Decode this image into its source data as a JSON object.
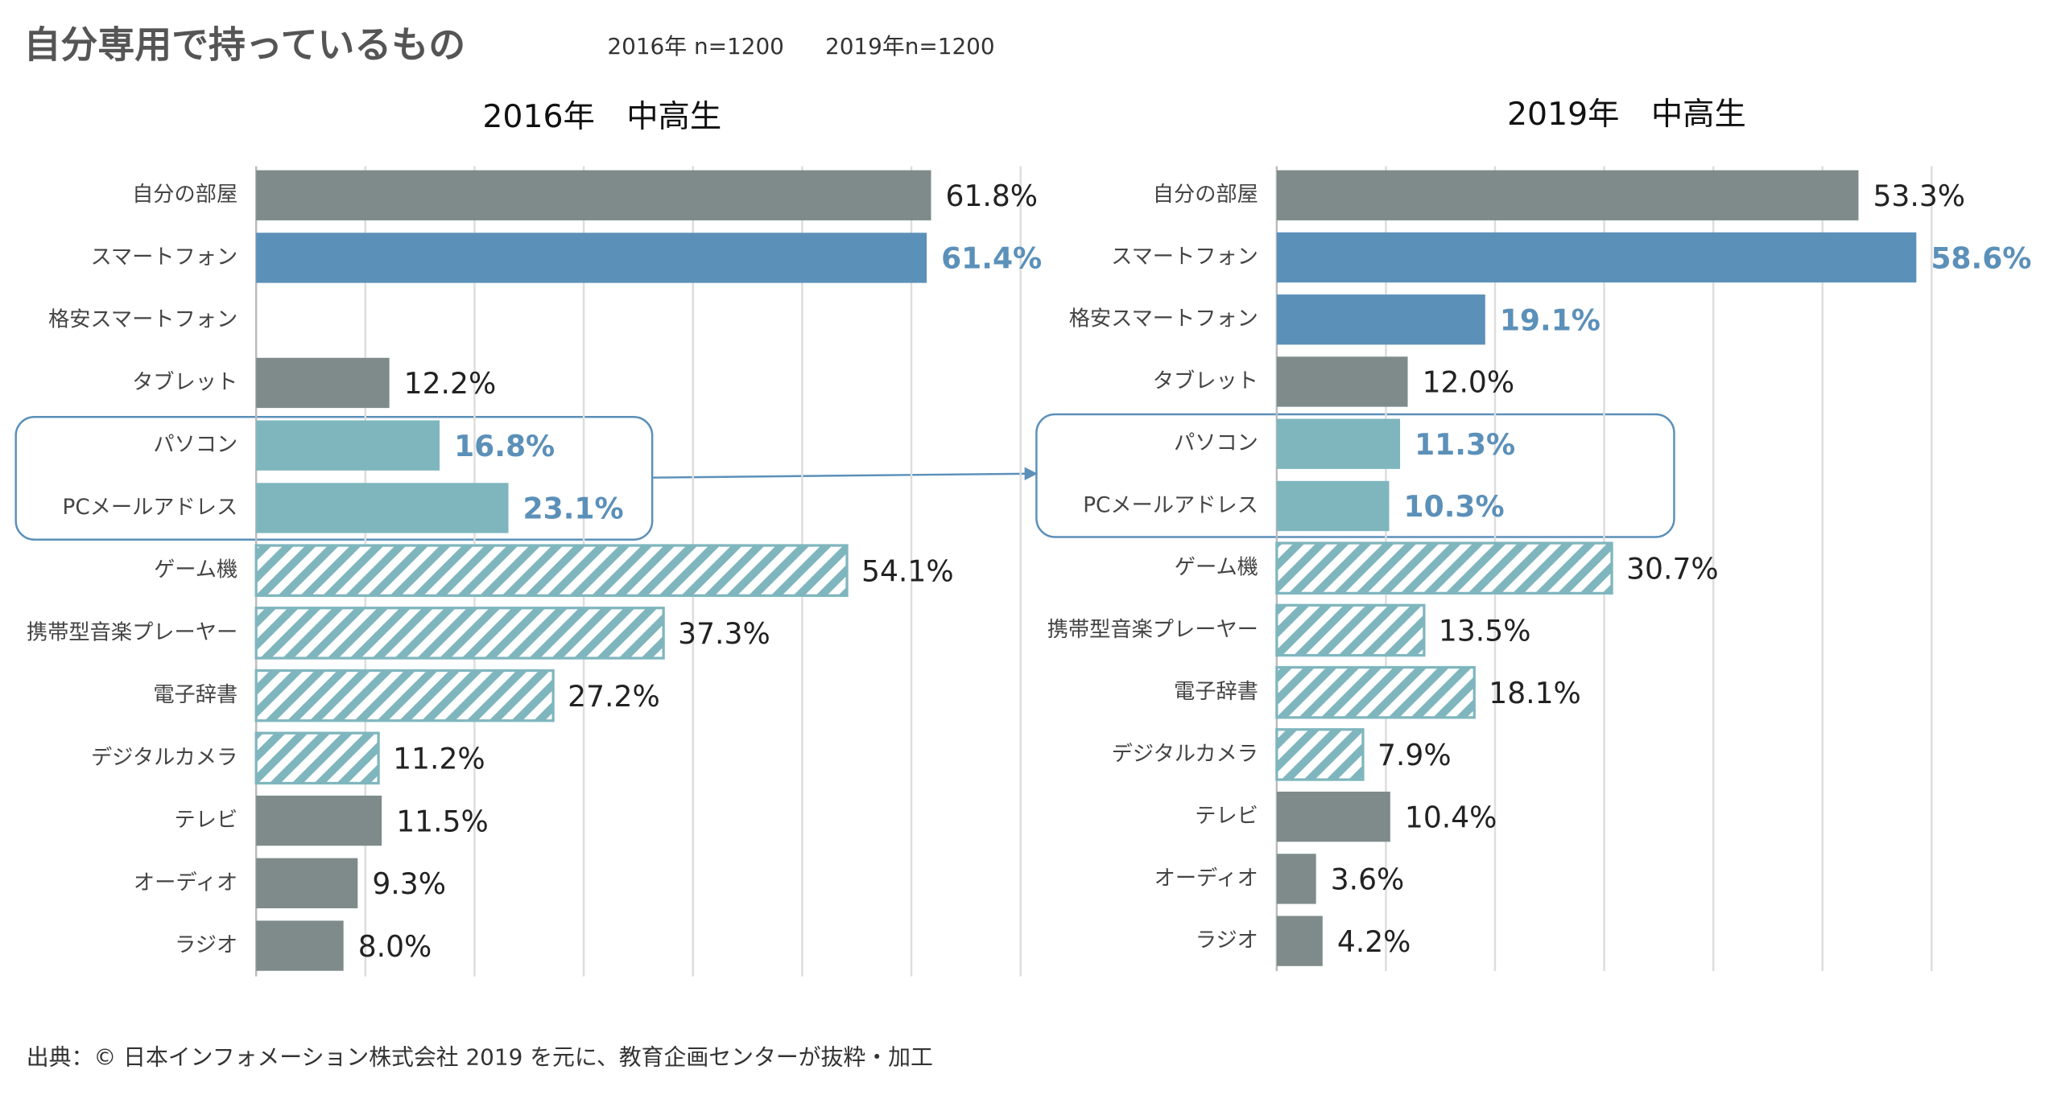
{
  "title": "自分専用で持っているもの",
  "sample_notes": [
    "2016年  n=1200",
    "2019年n=1200"
  ],
  "source": "出典：© 日本インフォメーション株式会社 2019  を元に、教育企画センターが抜粋・加工",
  "chart_data": [
    {
      "type": "bar",
      "orientation": "horizontal",
      "title": "2016年　中高生",
      "categories": [
        "自分の部屋",
        "スマートフォン",
        "格安スマートフォン",
        "タブレット",
        "パソコン",
        "PCメールアドレス",
        "ゲーム機",
        "携帯型音楽プレーヤー",
        "電子辞書",
        "デジタルカメラ",
        "テレビ",
        "オーディオ",
        "ラジオ"
      ],
      "values": [
        61.8,
        61.4,
        null,
        12.2,
        16.8,
        23.1,
        54.1,
        37.3,
        27.2,
        11.2,
        11.5,
        9.3,
        8.0
      ],
      "value_labels": [
        "61.8%",
        "61.4%",
        null,
        "12.2%",
        "16.8%",
        "23.1%",
        "54.1%",
        "37.3%",
        "27.2%",
        "11.2%",
        "11.5%",
        "9.3%",
        "8.0%"
      ],
      "colors": [
        "#7f8b8b",
        "#5b90b9",
        "#5b90b9",
        "#7f8b8b",
        "#7fb6be",
        "#7fb6be",
        "#7fb6be",
        "#7fb6be",
        "#7fb6be",
        "#7fb6be",
        "#7f8b8b",
        "#7f8b8b",
        "#7f8b8b"
      ],
      "hatched": [
        false,
        false,
        false,
        false,
        false,
        false,
        true,
        true,
        true,
        true,
        false,
        false,
        false
      ],
      "highlight": [
        false,
        true,
        true,
        false,
        true,
        true,
        false,
        false,
        false,
        false,
        false,
        false,
        false
      ],
      "xlim": [
        0,
        70
      ],
      "xticks": [
        0,
        10,
        20,
        30,
        40,
        50,
        60,
        70
      ],
      "grid": true
    },
    {
      "type": "bar",
      "orientation": "horizontal",
      "title": "2019年　中高生",
      "categories": [
        "自分の部屋",
        "スマートフォン",
        "格安スマートフォン",
        "タブレット",
        "パソコン",
        "PCメールアドレス",
        "ゲーム機",
        "携帯型音楽プレーヤー",
        "電子辞書",
        "デジタルカメラ",
        "テレビ",
        "オーディオ",
        "ラジオ"
      ],
      "values": [
        53.3,
        58.6,
        19.1,
        12.0,
        11.3,
        10.3,
        30.7,
        13.5,
        18.1,
        7.9,
        10.4,
        3.6,
        4.2
      ],
      "value_labels": [
        "53.3%",
        "58.6%",
        "19.1%",
        "12.0%",
        "11.3%",
        "10.3%",
        "30.7%",
        "13.5%",
        "18.1%",
        "7.9%",
        "10.4%",
        "3.6%",
        "4.2%"
      ],
      "colors": [
        "#7f8b8b",
        "#5b90b9",
        "#5b90b9",
        "#7f8b8b",
        "#7fb6be",
        "#7fb6be",
        "#7fb6be",
        "#7fb6be",
        "#7fb6be",
        "#7fb6be",
        "#7f8b8b",
        "#7f8b8b",
        "#7f8b8b"
      ],
      "hatched": [
        false,
        false,
        false,
        false,
        false,
        false,
        true,
        true,
        true,
        true,
        false,
        false,
        false
      ],
      "highlight": [
        false,
        true,
        true,
        false,
        true,
        true,
        false,
        false,
        false,
        false,
        false,
        false,
        false
      ],
      "xlim": [
        0,
        60
      ],
      "xticks": [
        0,
        10,
        20,
        30,
        40,
        50,
        60
      ],
      "grid": true
    }
  ]
}
